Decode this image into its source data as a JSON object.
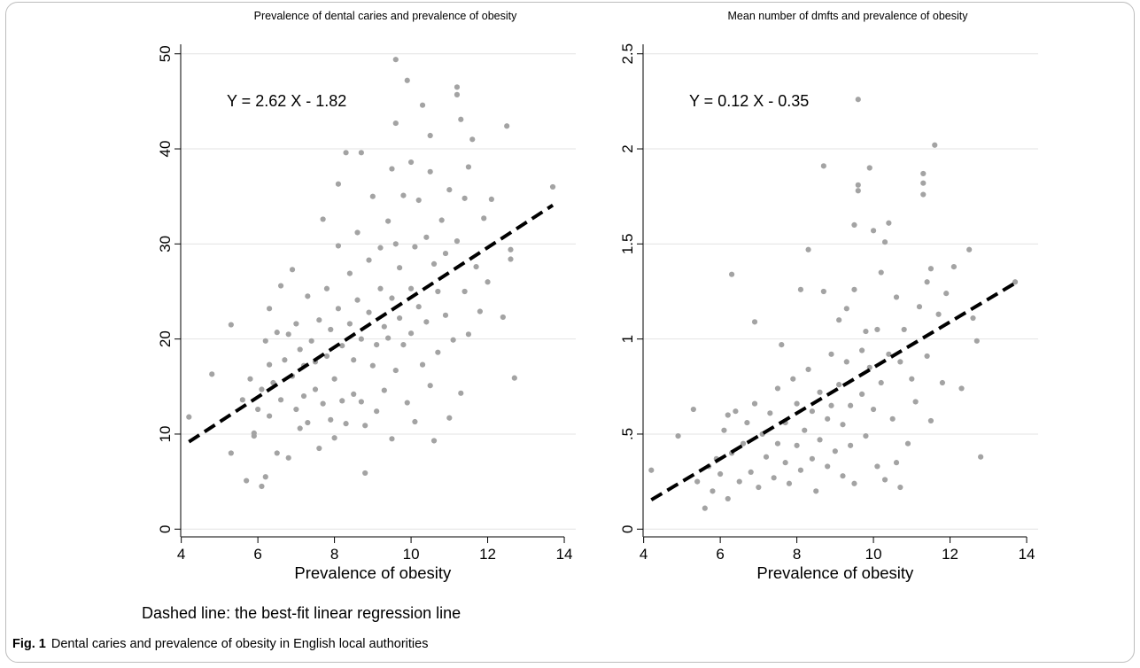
{
  "footnote": "Dashed line: the best-fit linear regression line",
  "caption": {
    "label": "Fig. 1",
    "text": "Dental caries and prevalence of obesity in English local authorities"
  },
  "colors": {
    "points": "#a3a3a3",
    "line": "#000000",
    "grid": "#e3e3e3",
    "axis": "#000000"
  },
  "chart_data": [
    {
      "type": "scatter",
      "title": "Prevalence of dental caries and prevalence of obesity",
      "xlabel": "Prevalence of obesity",
      "ylabel": "",
      "xlim": [
        3.8,
        14.3
      ],
      "ylim": [
        -1,
        51
      ],
      "xticks": [
        4,
        6,
        8,
        10,
        12,
        14
      ],
      "yticks": [
        0,
        10,
        20,
        30,
        40,
        50
      ],
      "ytick_labels": [
        "0",
        "10",
        "20",
        "30",
        "40",
        "50"
      ],
      "grid": true,
      "equation": "Y = 2.62 X - 1.82",
      "regression": {
        "slope": 2.62,
        "intercept": -1.82,
        "x_range": [
          4.2,
          13.7
        ]
      },
      "points": [
        [
          4.2,
          11.8
        ],
        [
          4.8,
          16.3
        ],
        [
          5.3,
          21.5
        ],
        [
          5.3,
          8.0
        ],
        [
          5.6,
          13.6
        ],
        [
          5.7,
          5.1
        ],
        [
          5.8,
          15.8
        ],
        [
          5.9,
          10.1
        ],
        [
          5.9,
          9.8
        ],
        [
          6.0,
          12.6
        ],
        [
          6.1,
          4.5
        ],
        [
          6.1,
          14.7
        ],
        [
          6.2,
          19.8
        ],
        [
          6.2,
          5.5
        ],
        [
          6.3,
          23.2
        ],
        [
          6.3,
          17.3
        ],
        [
          6.3,
          11.9
        ],
        [
          6.4,
          15.4
        ],
        [
          6.5,
          8.0
        ],
        [
          6.5,
          20.7
        ],
        [
          6.6,
          25.6
        ],
        [
          6.6,
          13.6
        ],
        [
          6.7,
          17.8
        ],
        [
          6.8,
          7.5
        ],
        [
          6.8,
          20.5
        ],
        [
          6.9,
          27.3
        ],
        [
          6.9,
          16.1
        ],
        [
          7.0,
          12.6
        ],
        [
          7.0,
          21.6
        ],
        [
          7.1,
          18.9
        ],
        [
          7.1,
          10.6
        ],
        [
          7.2,
          14.0
        ],
        [
          7.2,
          17.2
        ],
        [
          7.3,
          24.5
        ],
        [
          7.3,
          11.2
        ],
        [
          7.4,
          19.8
        ],
        [
          7.5,
          14.7
        ],
        [
          7.5,
          17.6
        ],
        [
          7.6,
          22.0
        ],
        [
          7.6,
          8.5
        ],
        [
          7.7,
          13.2
        ],
        [
          7.7,
          32.6
        ],
        [
          7.8,
          25.3
        ],
        [
          7.8,
          18.2
        ],
        [
          7.9,
          11.5
        ],
        [
          7.9,
          21.0
        ],
        [
          8.0,
          9.6
        ],
        [
          8.0,
          15.8
        ],
        [
          8.1,
          29.8
        ],
        [
          8.1,
          36.3
        ],
        [
          8.1,
          23.2
        ],
        [
          8.2,
          13.5
        ],
        [
          8.2,
          19.3
        ],
        [
          8.3,
          39.6
        ],
        [
          8.3,
          11.1
        ],
        [
          8.4,
          26.9
        ],
        [
          8.4,
          21.6
        ],
        [
          8.5,
          14.2
        ],
        [
          8.5,
          17.8
        ],
        [
          8.6,
          31.2
        ],
        [
          8.6,
          24.1
        ],
        [
          8.7,
          39.6
        ],
        [
          8.7,
          20.0
        ],
        [
          8.7,
          13.4
        ],
        [
          8.8,
          10.9
        ],
        [
          8.8,
          5.9
        ],
        [
          8.9,
          28.3
        ],
        [
          8.9,
          22.8
        ],
        [
          9.0,
          35.0
        ],
        [
          9.0,
          17.2
        ],
        [
          9.1,
          19.4
        ],
        [
          9.1,
          12.4
        ],
        [
          9.2,
          29.6
        ],
        [
          9.2,
          25.3
        ],
        [
          9.3,
          14.6
        ],
        [
          9.3,
          21.3
        ],
        [
          9.4,
          32.4
        ],
        [
          9.4,
          20.1
        ],
        [
          9.5,
          37.9
        ],
        [
          9.5,
          9.5
        ],
        [
          9.5,
          24.3
        ],
        [
          9.6,
          49.4
        ],
        [
          9.6,
          42.7
        ],
        [
          9.6,
          30.0
        ],
        [
          9.6,
          16.7
        ],
        [
          9.7,
          27.5
        ],
        [
          9.7,
          22.2
        ],
        [
          9.8,
          35.1
        ],
        [
          9.8,
          19.4
        ],
        [
          9.9,
          13.3
        ],
        [
          9.9,
          47.2
        ],
        [
          10.0,
          38.6
        ],
        [
          10.0,
          25.3
        ],
        [
          10.0,
          20.6
        ],
        [
          10.1,
          29.7
        ],
        [
          10.1,
          11.3
        ],
        [
          10.2,
          34.6
        ],
        [
          10.2,
          23.4
        ],
        [
          10.3,
          44.6
        ],
        [
          10.3,
          17.3
        ],
        [
          10.4,
          30.7
        ],
        [
          10.4,
          21.8
        ],
        [
          10.5,
          37.6
        ],
        [
          10.5,
          41.4
        ],
        [
          10.5,
          15.1
        ],
        [
          10.6,
          27.9
        ],
        [
          10.6,
          9.3
        ],
        [
          10.7,
          25.0
        ],
        [
          10.7,
          18.6
        ],
        [
          10.8,
          32.5
        ],
        [
          10.9,
          29.0
        ],
        [
          10.9,
          22.5
        ],
        [
          11.0,
          35.7
        ],
        [
          11.0,
          11.7
        ],
        [
          11.1,
          19.9
        ],
        [
          11.2,
          30.3
        ],
        [
          11.2,
          46.5
        ],
        [
          11.2,
          45.7
        ],
        [
          11.3,
          43.1
        ],
        [
          11.3,
          14.3
        ],
        [
          11.4,
          34.8
        ],
        [
          11.4,
          25.0
        ],
        [
          11.5,
          38.1
        ],
        [
          11.5,
          20.5
        ],
        [
          11.6,
          41.0
        ],
        [
          11.7,
          27.6
        ],
        [
          11.8,
          22.9
        ],
        [
          11.9,
          32.7
        ],
        [
          12.0,
          26.0
        ],
        [
          12.1,
          34.7
        ],
        [
          12.4,
          22.3
        ],
        [
          12.5,
          42.4
        ],
        [
          12.6,
          29.4
        ],
        [
          12.6,
          28.4
        ],
        [
          12.7,
          15.9
        ],
        [
          13.7,
          36.0
        ]
      ]
    },
    {
      "type": "scatter",
      "title": "Mean number of dmfts and prevalence of obesity",
      "xlabel": "Prevalence of obesity",
      "ylabel": "",
      "xlim": [
        3.8,
        14.3
      ],
      "ylim": [
        -0.05,
        2.55
      ],
      "xticks": [
        4,
        6,
        8,
        10,
        12,
        14
      ],
      "yticks": [
        0,
        0.5,
        1,
        1.5,
        2,
        2.5
      ],
      "ytick_labels": [
        "0",
        ".5",
        "1",
        "1.5",
        "2",
        "2.5"
      ],
      "grid": true,
      "equation": "Y = 0.12 X - 0.35",
      "regression": {
        "slope": 0.12,
        "intercept": -0.35,
        "x_range": [
          4.2,
          13.7
        ]
      },
      "points": [
        [
          4.2,
          0.31
        ],
        [
          4.9,
          0.49
        ],
        [
          5.3,
          0.63
        ],
        [
          5.4,
          0.25
        ],
        [
          5.6,
          0.11
        ],
        [
          5.7,
          0.33
        ],
        [
          5.8,
          0.2
        ],
        [
          5.9,
          0.37
        ],
        [
          6.0,
          0.29
        ],
        [
          6.1,
          0.52
        ],
        [
          6.2,
          0.6
        ],
        [
          6.2,
          0.16
        ],
        [
          6.3,
          1.34
        ],
        [
          6.3,
          0.4
        ],
        [
          6.4,
          0.62
        ],
        [
          6.5,
          0.25
        ],
        [
          6.6,
          0.45
        ],
        [
          6.7,
          0.56
        ],
        [
          6.8,
          0.3
        ],
        [
          6.9,
          1.09
        ],
        [
          6.9,
          0.66
        ],
        [
          7.0,
          0.22
        ],
        [
          7.1,
          0.5
        ],
        [
          7.2,
          0.38
        ],
        [
          7.3,
          0.61
        ],
        [
          7.4,
          0.27
        ],
        [
          7.5,
          0.74
        ],
        [
          7.5,
          0.45
        ],
        [
          7.6,
          0.97
        ],
        [
          7.7,
          0.35
        ],
        [
          7.7,
          0.56
        ],
        [
          7.8,
          0.24
        ],
        [
          7.9,
          0.79
        ],
        [
          8.0,
          0.44
        ],
        [
          8.0,
          0.66
        ],
        [
          8.1,
          1.26
        ],
        [
          8.1,
          0.31
        ],
        [
          8.2,
          0.52
        ],
        [
          8.3,
          1.47
        ],
        [
          8.3,
          0.84
        ],
        [
          8.4,
          0.37
        ],
        [
          8.4,
          0.62
        ],
        [
          8.5,
          0.2
        ],
        [
          8.6,
          0.72
        ],
        [
          8.6,
          0.47
        ],
        [
          8.7,
          1.25
        ],
        [
          8.7,
          1.91
        ],
        [
          8.8,
          0.58
        ],
        [
          8.8,
          0.33
        ],
        [
          8.9,
          0.92
        ],
        [
          8.9,
          0.65
        ],
        [
          9.0,
          0.41
        ],
        [
          9.1,
          1.1
        ],
        [
          9.1,
          0.76
        ],
        [
          9.2,
          0.55
        ],
        [
          9.2,
          0.28
        ],
        [
          9.3,
          1.16
        ],
        [
          9.3,
          0.88
        ],
        [
          9.4,
          0.65
        ],
        [
          9.4,
          0.44
        ],
        [
          9.5,
          1.6
        ],
        [
          9.5,
          1.26
        ],
        [
          9.5,
          0.24
        ],
        [
          9.6,
          2.26
        ],
        [
          9.6,
          1.81
        ],
        [
          9.6,
          1.78
        ],
        [
          9.7,
          0.94
        ],
        [
          9.7,
          0.71
        ],
        [
          9.8,
          1.04
        ],
        [
          9.8,
          0.49
        ],
        [
          9.9,
          1.9
        ],
        [
          9.9,
          0.85
        ],
        [
          10.0,
          1.57
        ],
        [
          10.0,
          0.63
        ],
        [
          10.1,
          0.33
        ],
        [
          10.1,
          1.05
        ],
        [
          10.2,
          1.35
        ],
        [
          10.2,
          0.77
        ],
        [
          10.3,
          1.51
        ],
        [
          10.3,
          0.26
        ],
        [
          10.4,
          1.61
        ],
        [
          10.4,
          0.92
        ],
        [
          10.5,
          0.58
        ],
        [
          10.6,
          1.22
        ],
        [
          10.6,
          0.35
        ],
        [
          10.7,
          0.88
        ],
        [
          10.7,
          0.22
        ],
        [
          10.8,
          1.05
        ],
        [
          10.9,
          0.45
        ],
        [
          11.0,
          0.79
        ],
        [
          11.1,
          0.67
        ],
        [
          11.2,
          1.17
        ],
        [
          11.3,
          1.87
        ],
        [
          11.3,
          1.82
        ],
        [
          11.3,
          1.76
        ],
        [
          11.4,
          1.3
        ],
        [
          11.4,
          0.91
        ],
        [
          11.5,
          1.37
        ],
        [
          11.5,
          0.57
        ],
        [
          11.6,
          2.02
        ],
        [
          11.7,
          1.13
        ],
        [
          11.8,
          0.77
        ],
        [
          11.9,
          1.24
        ],
        [
          12.1,
          1.38
        ],
        [
          12.3,
          0.74
        ],
        [
          12.5,
          1.47
        ],
        [
          12.6,
          1.11
        ],
        [
          12.7,
          0.99
        ],
        [
          12.8,
          0.38
        ],
        [
          13.7,
          1.3
        ]
      ]
    }
  ]
}
